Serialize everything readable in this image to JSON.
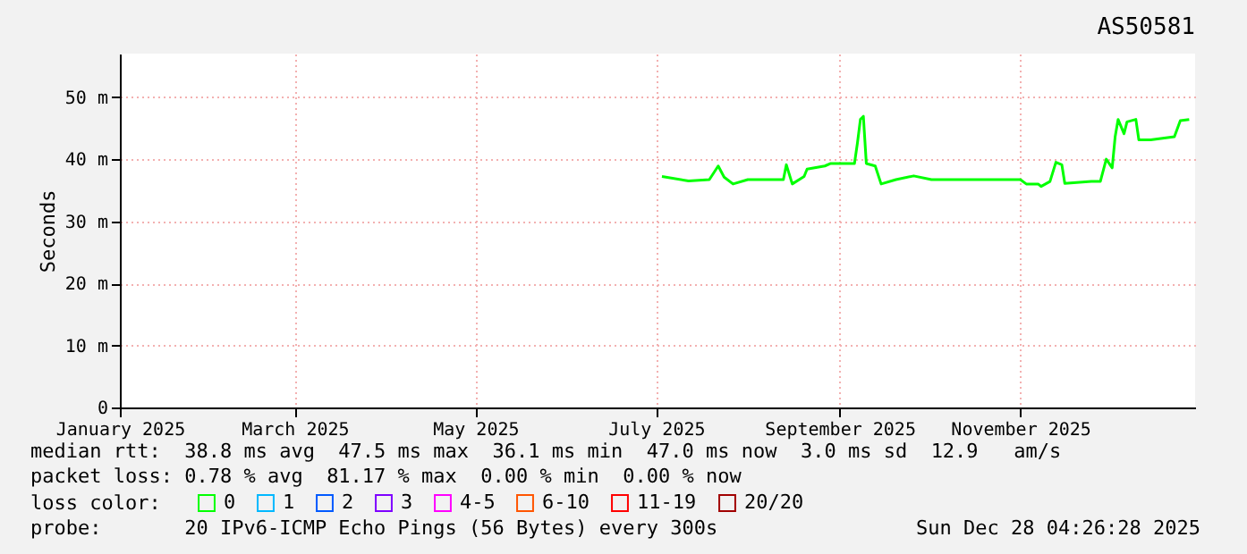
{
  "chart_data": {
    "type": "line",
    "title": "AS50581",
    "ylabel": "Seconds",
    "legend_title": "loss color:",
    "x": [
      "2025-07-03",
      "2025-07-12",
      "2025-07-19",
      "2025-07-22",
      "2025-07-24",
      "2025-07-27",
      "2025-08-01",
      "2025-08-13",
      "2025-08-14",
      "2025-08-16",
      "2025-08-20",
      "2025-08-21",
      "2025-08-27",
      "2025-08-29",
      "2025-09-06",
      "2025-09-07",
      "2025-09-08",
      "2025-09-09",
      "2025-09-10",
      "2025-09-13",
      "2025-09-15",
      "2025-09-20",
      "2025-09-26",
      "2025-10-02",
      "2025-11-01",
      "2025-11-03",
      "2025-11-07",
      "2025-11-08",
      "2025-11-11",
      "2025-11-13",
      "2025-11-15",
      "2025-11-16",
      "2025-11-25",
      "2025-11-28",
      "2025-11-30",
      "2025-12-02",
      "2025-12-03",
      "2025-12-04",
      "2025-12-06",
      "2025-12-07",
      "2025-12-10",
      "2025-12-11",
      "2025-12-15",
      "2025-12-23",
      "2025-12-25",
      "2025-12-28"
    ],
    "series": [
      {
        "name": "0",
        "color": "#00ff00",
        "values": [
          37.2,
          36.5,
          36.7,
          38.9,
          37.1,
          36.0,
          36.7,
          36.7,
          39.1,
          36.0,
          37.2,
          38.4,
          38.9,
          39.3,
          39.3,
          42.6,
          46.4,
          46.9,
          39.3,
          38.9,
          36.0,
          36.7,
          37.3,
          36.7,
          36.7,
          36.0,
          36.0,
          35.6,
          36.4,
          39.5,
          39.1,
          36.1,
          36.4,
          36.4,
          40.0,
          38.6,
          43.6,
          46.4,
          44.1,
          46.0,
          46.4,
          43.1,
          43.1,
          43.6,
          46.2,
          46.4
        ]
      },
      {
        "name": "1",
        "color": "#00b8ff",
        "values": [
          null,
          null,
          null,
          null,
          null,
          null,
          null,
          null,
          null,
          null,
          null,
          null,
          null,
          null,
          null,
          null,
          null,
          null,
          null,
          null,
          null,
          null,
          null,
          null,
          null,
          null,
          null,
          null,
          null,
          null,
          null,
          null,
          null,
          null,
          null,
          null,
          null,
          null,
          null,
          null,
          null,
          null,
          null,
          null,
          null,
          null
        ]
      },
      {
        "name": "2",
        "color": "#0059ff",
        "values": [
          null,
          null,
          null,
          null,
          null,
          null,
          null,
          null,
          null,
          null,
          null,
          null,
          null,
          null,
          null,
          null,
          null,
          null,
          null,
          null,
          null,
          null,
          null,
          null,
          null,
          null,
          null,
          null,
          null,
          null,
          null,
          null,
          null,
          null,
          null,
          null,
          null,
          null,
          null,
          null,
          null,
          null,
          null,
          null,
          null,
          null
        ]
      },
      {
        "name": "3",
        "color": "#7e00ff",
        "values": [
          null,
          null,
          null,
          null,
          null,
          null,
          null,
          null,
          null,
          null,
          null,
          null,
          null,
          null,
          null,
          null,
          null,
          null,
          null,
          null,
          null,
          null,
          null,
          null,
          null,
          null,
          null,
          null,
          null,
          null,
          null,
          null,
          null,
          null,
          null,
          null,
          null,
          null,
          null,
          null,
          null,
          null,
          null,
          null,
          null,
          null
        ]
      },
      {
        "name": "4-5",
        "color": "#ff00ff",
        "values": [
          null,
          null,
          null,
          null,
          null,
          null,
          null,
          null,
          null,
          null,
          null,
          null,
          null,
          null,
          null,
          null,
          null,
          null,
          null,
          null,
          null,
          null,
          null,
          null,
          null,
          null,
          null,
          null,
          null,
          null,
          null,
          null,
          null,
          null,
          null,
          null,
          null,
          null,
          null,
          null,
          null,
          null,
          null,
          null,
          null,
          null
        ]
      },
      {
        "name": "6-10",
        "color": "#ff5500",
        "values": [
          null,
          null,
          null,
          null,
          null,
          null,
          null,
          null,
          null,
          null,
          null,
          null,
          null,
          null,
          null,
          null,
          null,
          null,
          null,
          null,
          null,
          null,
          null,
          null,
          null,
          null,
          null,
          null,
          null,
          null,
          null,
          null,
          null,
          null,
          null,
          null,
          null,
          null,
          null,
          null,
          null,
          null,
          null,
          null,
          null,
          null
        ]
      },
      {
        "name": "11-19",
        "color": "#ff0000",
        "values": [
          null,
          null,
          null,
          null,
          null,
          null,
          null,
          null,
          null,
          null,
          null,
          null,
          null,
          null,
          null,
          null,
          null,
          null,
          null,
          null,
          null,
          null,
          null,
          null,
          null,
          null,
          null,
          null,
          null,
          null,
          null,
          null,
          null,
          null,
          null,
          null,
          null,
          null,
          null,
          null,
          null,
          null,
          null,
          null,
          null,
          null
        ]
      },
      {
        "name": "20/20",
        "color": "#a10000",
        "values": [
          null,
          null,
          null,
          null,
          null,
          null,
          null,
          null,
          null,
          null,
          null,
          null,
          null,
          null,
          null,
          null,
          null,
          null,
          null,
          null,
          null,
          null,
          null,
          null,
          null,
          null,
          null,
          null,
          null,
          null,
          null,
          null,
          null,
          null,
          null,
          null,
          null,
          null,
          null,
          null,
          null,
          null,
          null,
          null,
          null,
          null
        ]
      }
    ],
    "xlim": [
      "2025-01-01",
      "2025-12-30"
    ],
    "xticks": [
      {
        "value": "2025-01-01",
        "label": "January 2025"
      },
      {
        "value": "2025-03-01",
        "label": "March 2025"
      },
      {
        "value": "2025-05-01",
        "label": "May 2025"
      },
      {
        "value": "2025-07-01",
        "label": "July 2025"
      },
      {
        "value": "2025-09-01",
        "label": "September 2025"
      },
      {
        "value": "2025-11-01",
        "label": "November 2025"
      }
    ],
    "ylim": [
      0,
      57
    ],
    "yticks": [
      0,
      {
        "value": 10,
        "label": "10 m"
      },
      {
        "value": 20,
        "label": "20 m"
      },
      {
        "value": 30,
        "label": "30 m"
      },
      {
        "value": 40,
        "label": "40 m"
      },
      {
        "value": 50,
        "label": "50 m"
      }
    ],
    "grid": true,
    "legend": "bottom",
    "marker": "none",
    "line_style": "solid",
    "annotations": [
      "median rtt:  38.8 ms avg  47.5 ms max  36.1 ms min  47.0 ms now  3.0 ms sd  12.9   am/s",
      "packet loss: 0.78 % avg  81.17 % max  0.00 % min  0.00 % now",
      "probe:       20 IPv6-ICMP Echo Pings (56 Bytes) every 300s",
      "Sun Dec 28 04:26:28 2025"
    ]
  }
}
